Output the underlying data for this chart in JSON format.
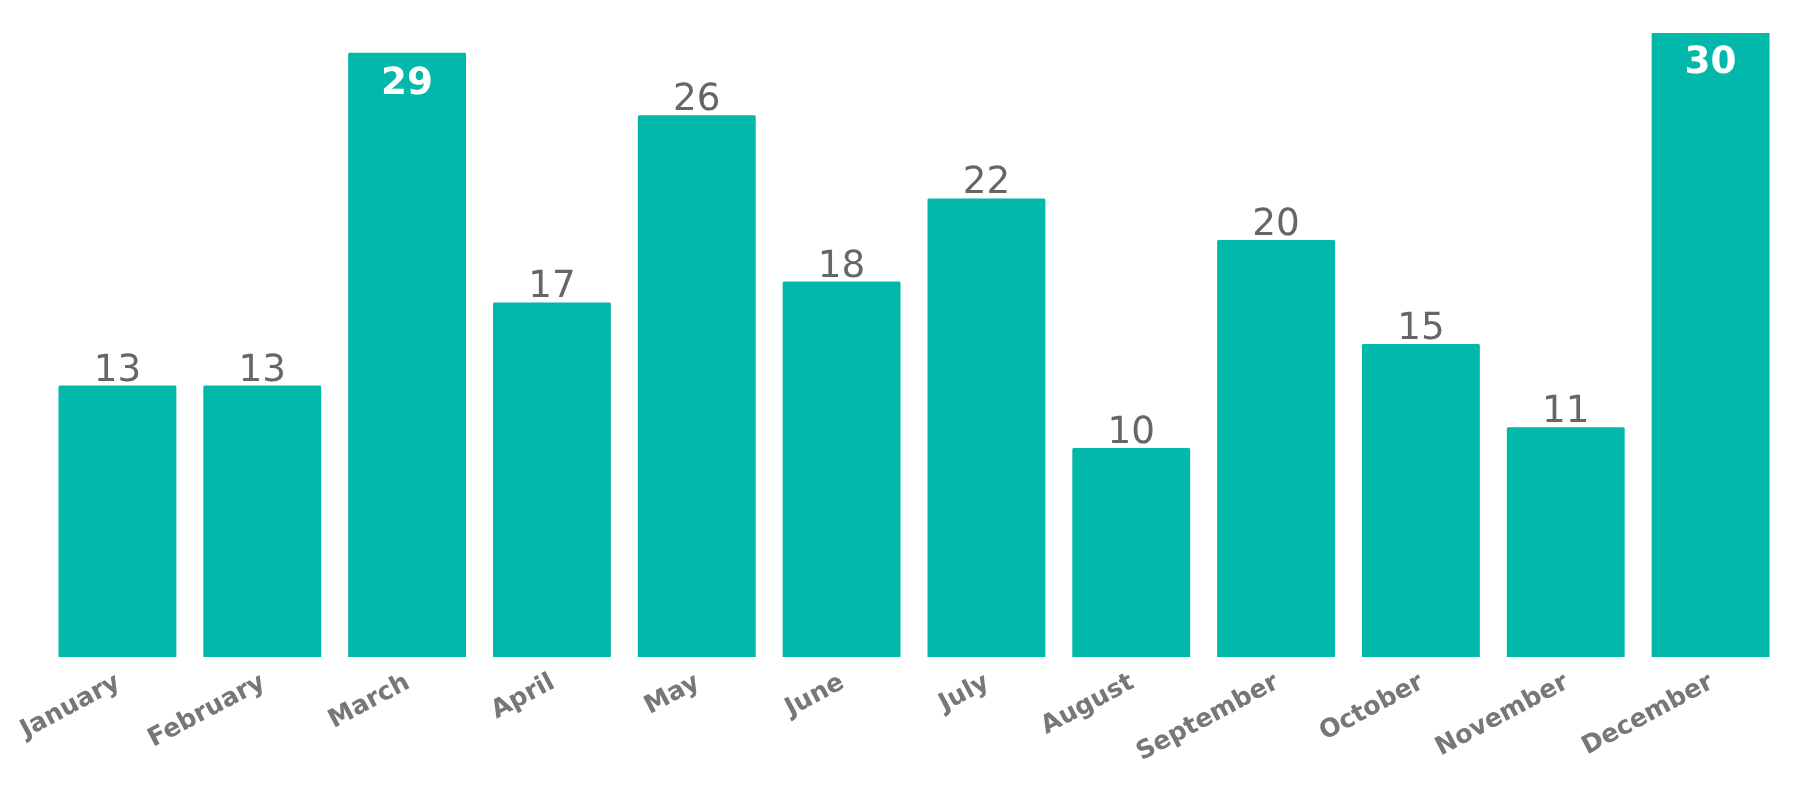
{
  "chart_data": {
    "type": "bar",
    "categories": [
      "January",
      "February",
      "March",
      "April",
      "May",
      "June",
      "July",
      "August",
      "September",
      "October",
      "November",
      "December"
    ],
    "values": [
      13,
      13,
      29,
      17,
      26,
      18,
      22,
      10,
      20,
      15,
      11,
      30
    ],
    "color": "#01b8aa",
    "data_labels": true,
    "grid": false
  }
}
